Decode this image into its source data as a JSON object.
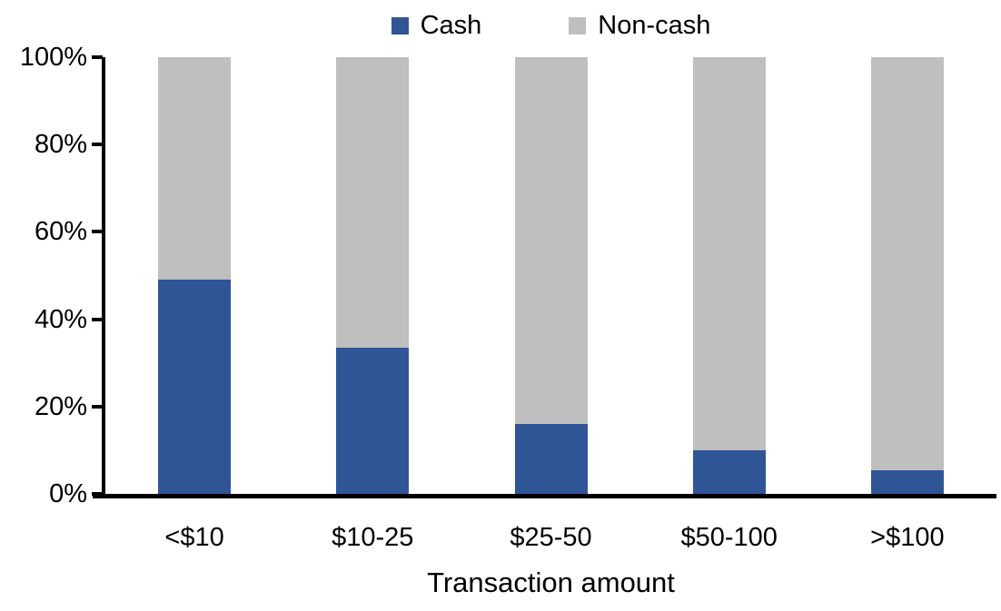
{
  "chart_data": {
    "type": "bar",
    "stacked": true,
    "stacked_mode": "percent",
    "title": "",
    "xlabel": "Transaction amount",
    "ylabel": "",
    "ylim": [
      0,
      100
    ],
    "yticks": [
      "0%",
      "20%",
      "40%",
      "60%",
      "80%",
      "100%"
    ],
    "grid": false,
    "legend_position": "top-center",
    "categories": [
      "<$10",
      "$10-25",
      "$25-50",
      "$50-100",
      ">$100"
    ],
    "series": [
      {
        "name": "Cash",
        "color": "#2F5596",
        "values": [
          49,
          33.5,
          16,
          10,
          5.5
        ]
      },
      {
        "name": "Non-cash",
        "color": "#BFBFBF",
        "values": [
          51,
          66.5,
          84,
          90,
          94.5
        ]
      }
    ],
    "axis_color": "#000000",
    "text_color": "#000000"
  }
}
